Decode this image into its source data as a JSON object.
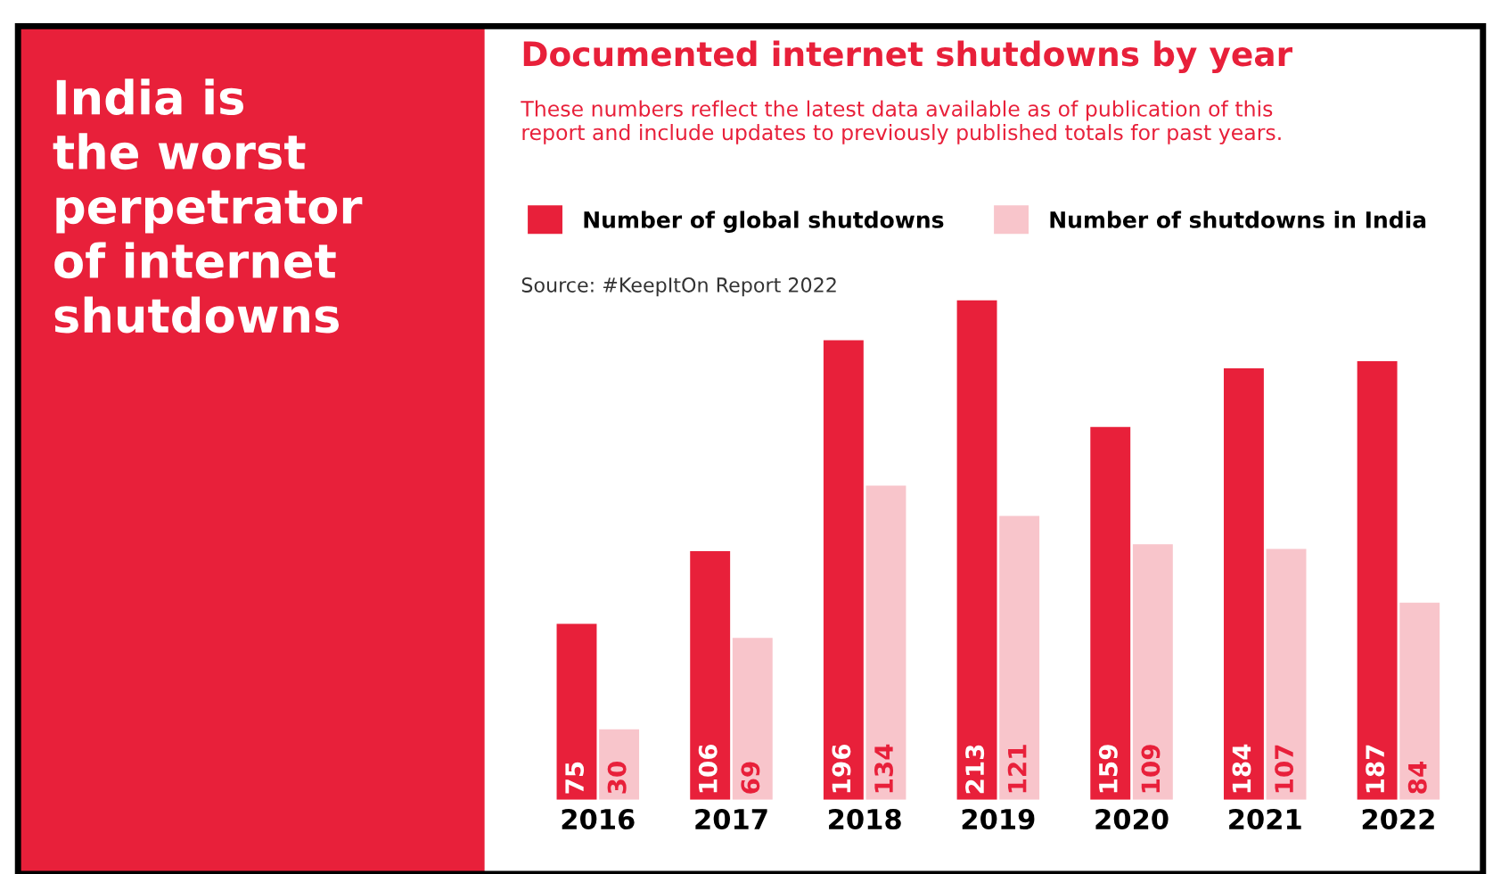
{
  "chart_data": {
    "type": "bar",
    "title": "Documented internet shutdowns by year",
    "subtitle": "These numbers reflect the latest data available as of publication of this\nreport and include updates to previously published totals for past years.",
    "annotations": [
      "India is\nthe worst\nperpetrator\nof internet\nshutdowns",
      "Source: #KeepItOn Report 2022"
    ],
    "categories": [
      "2016",
      "2017",
      "2018",
      "2019",
      "2020",
      "2021",
      "2022"
    ],
    "series": [
      {
        "name": "Number of global shutdowns",
        "color": "#e8203a",
        "values": [
          75,
          106,
          196,
          213,
          159,
          184,
          187
        ]
      },
      {
        "name": "Number of shutdowns in India",
        "color": "#f8c5cb",
        "values": [
          30,
          69,
          134,
          121,
          109,
          107,
          84
        ]
      }
    ],
    "data_labels": true,
    "legend": "top",
    "grid": false,
    "tick_labels": "x"
  }
}
